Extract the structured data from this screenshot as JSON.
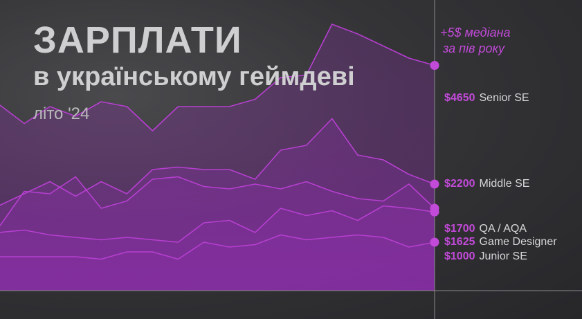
{
  "header": {
    "title": "ЗАРПЛАТИ",
    "subtitle": "в українському геймдеві",
    "season": "літо '24"
  },
  "annotation": {
    "line1": "+5$ медіана",
    "line2": "за пів року"
  },
  "colors": {
    "background": "#303033",
    "accent": "#c24ad8",
    "line": "#b63fd0",
    "label_text": "#d6d6d8",
    "axis": "#8a8a8d"
  },
  "chart_data": {
    "type": "area",
    "title": "",
    "xlabel": "",
    "ylabel": "",
    "x": [
      1,
      2,
      3,
      4,
      5,
      6,
      7,
      8,
      9,
      10,
      11,
      12,
      13,
      14,
      15,
      16,
      17,
      18
    ],
    "ylim": [
      0,
      6000
    ],
    "grid": false,
    "legend": "direct labels at right end",
    "series": [
      {
        "name": "Senior SE",
        "end_label": "$4650",
        "values": [
          3850,
          3450,
          3800,
          3600,
          3900,
          3800,
          3300,
          3800,
          3800,
          3800,
          3950,
          4400,
          4450,
          5500,
          5300,
          5050,
          4800,
          4650
        ]
      },
      {
        "name": "Middle SE",
        "end_label": "$2200",
        "values": [
          1750,
          2000,
          2250,
          1950,
          2250,
          2000,
          2500,
          2550,
          2500,
          2500,
          2300,
          2900,
          3000,
          3550,
          2800,
          2700,
          2400,
          2200
        ]
      },
      {
        "name": "QA / AQA",
        "end_label": "$1700",
        "values": [
          1300,
          2050,
          2000,
          2350,
          1700,
          1850,
          2300,
          2350,
          2150,
          2100,
          2200,
          2100,
          2250,
          2050,
          1900,
          1850,
          2200,
          1700
        ]
      },
      {
        "name": "Game Designer",
        "end_label": "$1625",
        "values": [
          1200,
          1250,
          1150,
          1100,
          1050,
          1100,
          1050,
          1000,
          1400,
          1450,
          1200,
          1700,
          1550,
          1650,
          1450,
          1750,
          1700,
          1625
        ]
      },
      {
        "name": "Junior SE",
        "end_label": "$1000",
        "values": [
          700,
          700,
          700,
          700,
          650,
          800,
          800,
          650,
          1000,
          900,
          950,
          1150,
          1050,
          1100,
          1150,
          1100,
          900,
          1000
        ]
      }
    ]
  }
}
